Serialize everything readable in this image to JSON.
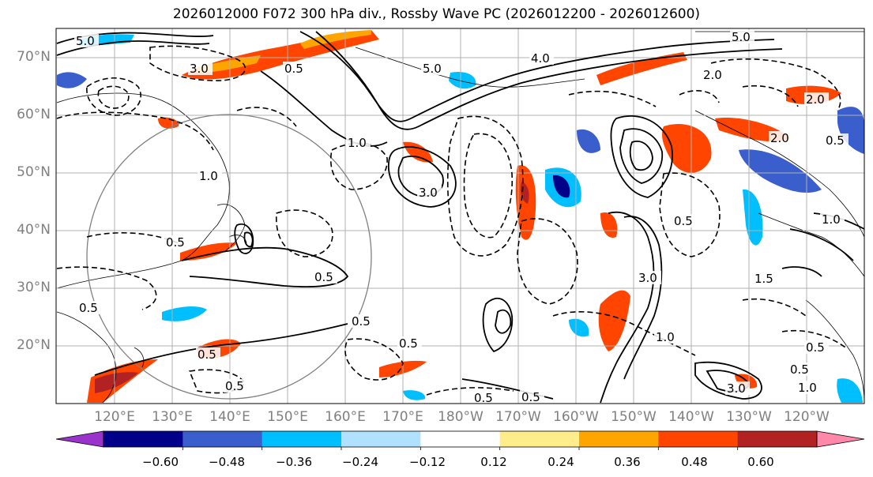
{
  "title": "2026012000 F072 300 hPa div., Rossby Wave PC (2026012200 - 2026012600)",
  "map": {
    "latitude_labels": [
      "70°N",
      "60°N",
      "50°N",
      "40°N",
      "30°N",
      "20°N"
    ],
    "longitude_labels": [
      "120°E",
      "130°E",
      "140°E",
      "150°E",
      "160°E",
      "170°E",
      "180°W",
      "170°W",
      "160°W",
      "150°W",
      "140°W",
      "130°W",
      "120°W"
    ],
    "contour_labels": [
      "5.0",
      "3.0",
      "0.5",
      "1.0",
      "3.0",
      "0.5",
      "5.0",
      "4.0",
      "5.0",
      "2.0",
      "2.0",
      "0.5",
      "1.0",
      "3.0",
      "1.0",
      "0.5",
      "0.5",
      "0.5",
      "3.0",
      "0.5",
      "1.0",
      "0.5",
      "1.5",
      "0.5",
      "0.5",
      "0.5",
      "1.0",
      "0.5",
      "0.5",
      "2.0",
      "0.5"
    ],
    "colors": {
      "land_outline": "#000000",
      "gridline": "#b0b0b0",
      "range_circle": "#808080"
    }
  },
  "colorbar": {
    "tick_labels": [
      "−0.60",
      "−0.48",
      "−0.36",
      "−0.24",
      "−0.12",
      "0.12",
      "0.24",
      "0.36",
      "0.48",
      "0.60"
    ],
    "colors": [
      "#9933cc",
      "#00008b",
      "#3a5fcd",
      "#00bfff",
      "#b0e2ff",
      "#ffffff",
      "#ffec8b",
      "#ffa500",
      "#ff4500",
      "#b22222",
      "#ff88aa"
    ]
  }
}
